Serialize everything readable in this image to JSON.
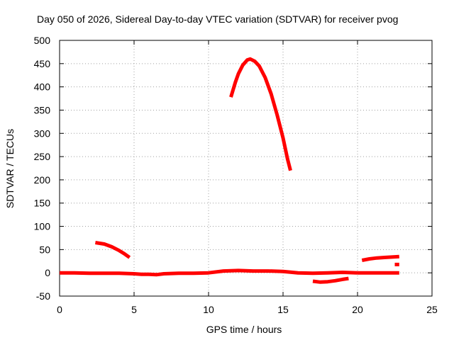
{
  "chart_data": {
    "type": "line",
    "title": "Day 050 of 2026, Sidereal Day-to-day VTEC variation (SDTVAR) for receiver pvog",
    "xlabel": "GPS time / hours",
    "ylabel": "SDTVAR / TECUs",
    "xlim": [
      0,
      25
    ],
    "ylim": [
      -50,
      500
    ],
    "xticks": [
      0,
      5,
      10,
      15,
      20,
      25
    ],
    "yticks": [
      -50,
      0,
      50,
      100,
      150,
      200,
      250,
      300,
      350,
      400,
      450,
      500
    ],
    "grid": true,
    "color": "#ff0000",
    "series": [
      {
        "name": "baseline-1",
        "points": [
          [
            0.0,
            0
          ],
          [
            1.0,
            0
          ],
          [
            2.0,
            -1
          ],
          [
            3.0,
            -1
          ],
          [
            4.0,
            -1
          ],
          [
            5.0,
            -2
          ],
          [
            5.5,
            -3
          ],
          [
            6.0,
            -3
          ],
          [
            6.5,
            -4
          ],
          [
            7.0,
            -2
          ],
          [
            8.0,
            -1
          ],
          [
            9.0,
            -1
          ],
          [
            10.0,
            0
          ],
          [
            11.0,
            4
          ],
          [
            12.0,
            5
          ],
          [
            13.0,
            4
          ],
          [
            14.0,
            4
          ],
          [
            15.0,
            3
          ],
          [
            16.0,
            0
          ],
          [
            17.0,
            -1
          ],
          [
            18.0,
            0
          ],
          [
            19.0,
            1
          ],
          [
            20.0,
            0
          ]
        ]
      },
      {
        "name": "baseline-2",
        "points": [
          [
            20.0,
            0
          ],
          [
            21.0,
            0
          ],
          [
            22.0,
            0
          ],
          [
            22.8,
            0
          ]
        ]
      },
      {
        "name": "arc-early",
        "points": [
          [
            2.4,
            65
          ],
          [
            3.0,
            62
          ],
          [
            3.5,
            56
          ],
          [
            4.0,
            48
          ],
          [
            4.3,
            42
          ],
          [
            4.7,
            33
          ]
        ]
      },
      {
        "name": "arc-peak",
        "points": [
          [
            11.5,
            378
          ],
          [
            11.8,
            410
          ],
          [
            12.0,
            428
          ],
          [
            12.3,
            447
          ],
          [
            12.6,
            458
          ],
          [
            12.8,
            460
          ],
          [
            13.1,
            455
          ],
          [
            13.4,
            445
          ],
          [
            13.8,
            420
          ],
          [
            14.2,
            385
          ],
          [
            14.6,
            340
          ],
          [
            15.0,
            290
          ],
          [
            15.3,
            245
          ],
          [
            15.5,
            220
          ]
        ]
      },
      {
        "name": "arc-negative",
        "points": [
          [
            17.0,
            -18
          ],
          [
            17.5,
            -20
          ],
          [
            18.0,
            -19
          ],
          [
            18.5,
            -17
          ],
          [
            19.0,
            -14
          ],
          [
            19.4,
            -12
          ]
        ]
      },
      {
        "name": "arc-late",
        "points": [
          [
            20.3,
            27
          ],
          [
            20.8,
            30
          ],
          [
            21.3,
            32
          ],
          [
            21.8,
            33
          ],
          [
            22.3,
            34
          ],
          [
            22.8,
            35
          ]
        ]
      },
      {
        "name": "late-short",
        "points": [
          [
            22.5,
            18
          ],
          [
            22.8,
            18
          ]
        ]
      }
    ]
  }
}
